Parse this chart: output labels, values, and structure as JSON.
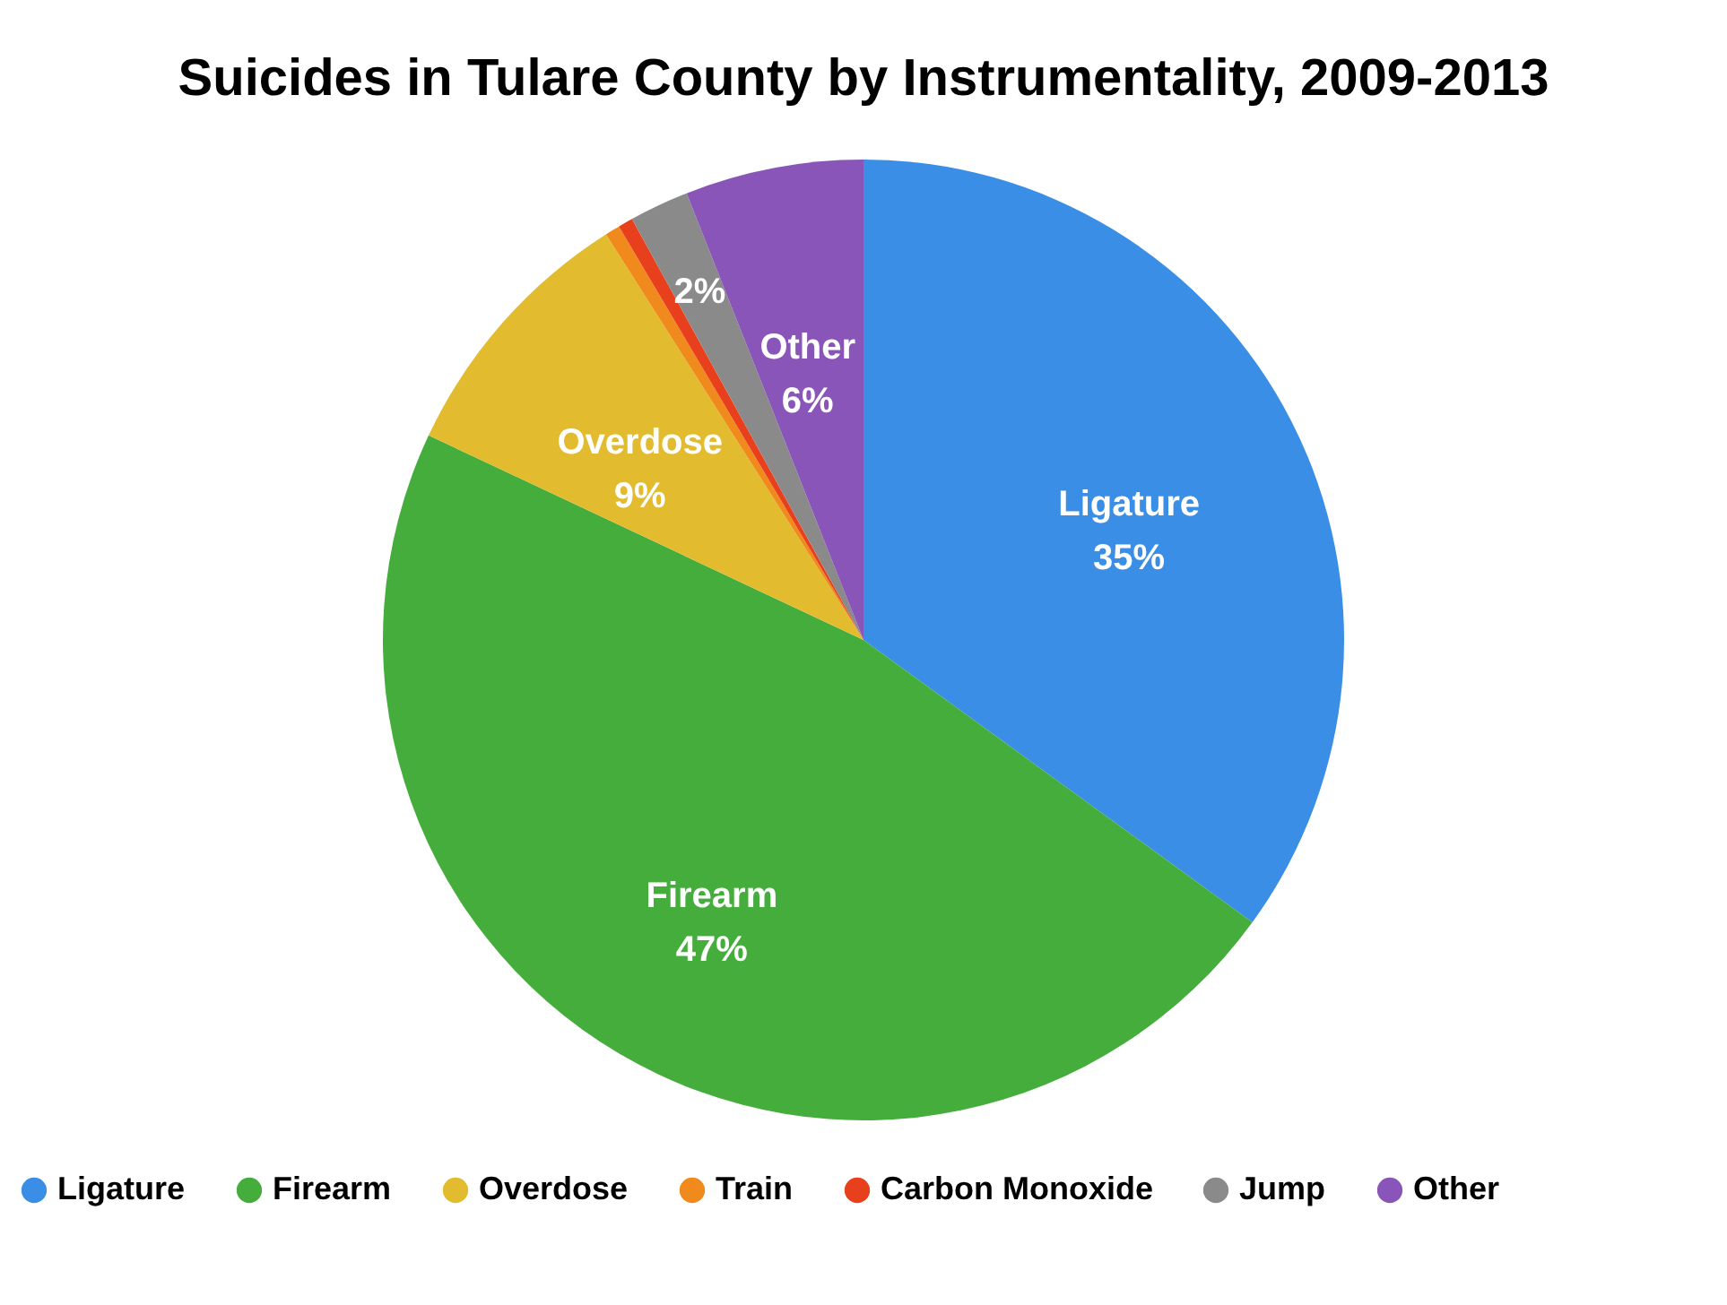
{
  "chart_data": {
    "type": "pie",
    "title": "Suicides in Tulare County by Instrumentality, 2009-2013",
    "categories": [
      "Ligature",
      "Firearm",
      "Overdose",
      "Train",
      "Carbon Monoxide",
      "Jump",
      "Other"
    ],
    "values": [
      35,
      47,
      9,
      0.5,
      0.5,
      2,
      6
    ],
    "colors": [
      "#3a8ee6",
      "#45ad3c",
      "#e2bb2e",
      "#f08a1c",
      "#e8401c",
      "#8a8a8a",
      "#8a55b8"
    ],
    "value_labels": [
      "Ligature\n35%",
      "Firearm\n47%",
      "Overdose\n9%",
      null,
      null,
      "2%",
      "Other\n6%"
    ],
    "legend": "bottom"
  }
}
